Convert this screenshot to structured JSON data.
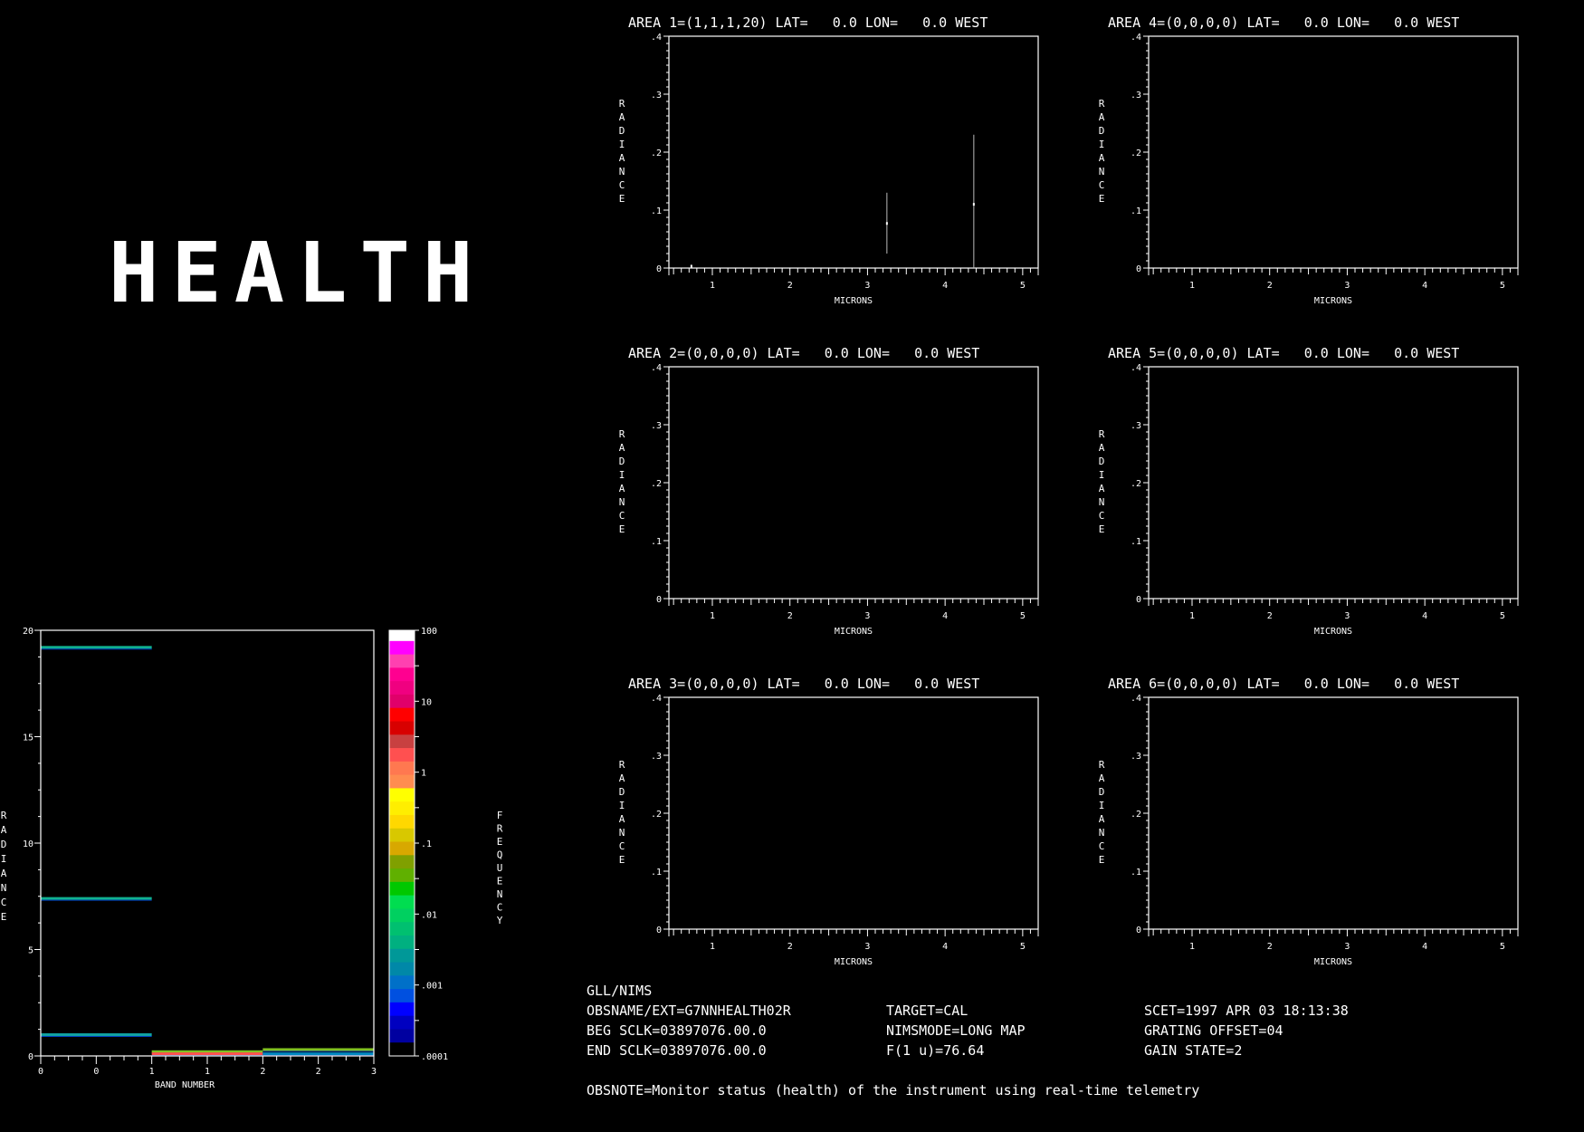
{
  "header": {
    "title": "HEALTH"
  },
  "info": {
    "instrument": "GLL/NIMS",
    "obsname": "OBSNAME/EXT=G7NNHEALTH02R",
    "target": "TARGET=CAL",
    "scet": "SCET=1997 APR 03 18:13:38",
    "beg_sclk": "BEG SCLK=03897076.00.0",
    "nimsmode": "NIMSMODE=LONG MAP",
    "grating": "GRATING OFFSET=04",
    "end_sclk": "END SCLK=03897076.00.0",
    "f1u": "F(1 u)=76.64",
    "gain": "GAIN STATE=2",
    "obsnote": "OBSNOTE=Monitor status (health) of the instrument using real-time telemetry"
  },
  "chart_data": [
    {
      "type": "heatmap",
      "xlabel": "BAND NUMBER",
      "ylabel": "RADIANCE",
      "ylim": [
        0,
        20
      ],
      "xlim": [
        0,
        3
      ],
      "x_tick_labels": [
        "0",
        "0",
        "1",
        "1",
        "2",
        "2",
        "3"
      ],
      "y_tick_labels": [
        "0",
        "5",
        "10",
        "15",
        "20"
      ],
      "colorbar": {
        "label": "FREQUENCY",
        "scale": "log",
        "range": [
          0.0001,
          100
        ],
        "tick_labels": [
          "100",
          "10",
          "1",
          ".1",
          ".01",
          ".001",
          ".0001"
        ],
        "colors": [
          "#ffffff",
          "#ff00ff",
          "#ff40b0",
          "#ff0090",
          "#f00080",
          "#e0006a",
          "#ff0000",
          "#d80000",
          "#c84040",
          "#ff5050",
          "#ff7850",
          "#ff8c50",
          "#ffff00",
          "#ffee00",
          "#ffd800",
          "#d8c800",
          "#d8a800",
          "#80a000",
          "#60b000",
          "#00c800",
          "#00dd50",
          "#00d060",
          "#00c070",
          "#00b080",
          "#009898",
          "#0088a8",
          "#0070c8",
          "#0050e0",
          "#0000ff",
          "#0000c0",
          "#0000a0",
          "#000000"
        ]
      },
      "segments": [
        {
          "band": [
            0,
            1
          ],
          "radiance": 19.2,
          "color": "#10b090"
        },
        {
          "band": [
            0,
            1
          ],
          "radiance": 7.4,
          "color": "#10b090"
        },
        {
          "band": [
            0,
            1
          ],
          "radiance": 1.0,
          "color": "#10a0a0"
        },
        {
          "band": [
            1,
            2
          ],
          "radiance": 0.2,
          "color": "#80c020"
        },
        {
          "band": [
            1,
            2
          ],
          "radiance": 0.1,
          "color": "#ff5050"
        },
        {
          "band": [
            2,
            3
          ],
          "radiance": 0.3,
          "color": "#80c020"
        },
        {
          "band": [
            2,
            3
          ],
          "radiance": 0.1,
          "color": "#0088c0"
        }
      ]
    },
    {
      "type": "line",
      "title": "AREA 1=(1,1,1,20) LAT=   0.0 LON=   0.0 WEST",
      "xlabel": "MICRONS",
      "ylabel": "RADIANCE",
      "xlim": [
        0.44,
        5.2
      ],
      "ylim": [
        0,
        0.4
      ],
      "x_tick_labels": [
        "1",
        "2",
        "3",
        "4",
        "5"
      ],
      "y_tick_labels": [
        "0",
        ".1",
        ".2",
        ".3",
        ".4"
      ],
      "points": [
        {
          "x": 0.73,
          "y": 0.003,
          "low": 0.0,
          "high": 0.006
        },
        {
          "x": 3.25,
          "y": 0.077,
          "low": 0.025,
          "high": 0.13
        },
        {
          "x": 4.37,
          "y": 0.11,
          "low": 0.0,
          "high": 0.23
        }
      ]
    },
    {
      "type": "line",
      "title": "AREA 2=(0,0,0,0) LAT=   0.0 LON=   0.0 WEST",
      "xlabel": "MICRONS",
      "ylabel": "RADIANCE",
      "xlim": [
        0.44,
        5.2
      ],
      "ylim": [
        0,
        0.4
      ],
      "x_tick_labels": [
        "1",
        "2",
        "3",
        "4",
        "5"
      ],
      "y_tick_labels": [
        "0",
        ".1",
        ".2",
        ".3",
        ".4"
      ],
      "points": []
    },
    {
      "type": "line",
      "title": "AREA 3=(0,0,0,0) LAT=   0.0 LON=   0.0 WEST",
      "xlabel": "MICRONS",
      "ylabel": "RADIANCE",
      "xlim": [
        0.44,
        5.2
      ],
      "ylim": [
        0,
        0.4
      ],
      "x_tick_labels": [
        "1",
        "2",
        "3",
        "4",
        "5"
      ],
      "y_tick_labels": [
        "0",
        ".1",
        ".2",
        ".3",
        ".4"
      ],
      "points": []
    },
    {
      "type": "line",
      "title": "AREA 4=(0,0,0,0) LAT=   0.0 LON=   0.0 WEST",
      "xlabel": "MICRONS",
      "ylabel": "RADIANCE",
      "xlim": [
        0.44,
        5.2
      ],
      "ylim": [
        0,
        0.4
      ],
      "x_tick_labels": [
        "1",
        "2",
        "3",
        "4",
        "5"
      ],
      "y_tick_labels": [
        "0",
        ".1",
        ".2",
        ".3",
        ".4"
      ],
      "points": []
    },
    {
      "type": "line",
      "title": "AREA 5=(0,0,0,0) LAT=   0.0 LON=   0.0 WEST",
      "xlabel": "MICRONS",
      "ylabel": "RADIANCE",
      "xlim": [
        0.44,
        5.2
      ],
      "ylim": [
        0,
        0.4
      ],
      "x_tick_labels": [
        "1",
        "2",
        "3",
        "4",
        "5"
      ],
      "y_tick_labels": [
        "0",
        ".1",
        ".2",
        ".3",
        ".4"
      ],
      "points": []
    },
    {
      "type": "line",
      "title": "AREA 6=(0,0,0,0) LAT=   0.0 LON=   0.0 WEST",
      "xlabel": "MICRONS",
      "ylabel": "RADIANCE",
      "xlim": [
        0.44,
        5.2
      ],
      "ylim": [
        0,
        0.4
      ],
      "x_tick_labels": [
        "1",
        "2",
        "3",
        "4",
        "5"
      ],
      "y_tick_labels": [
        "0",
        ".1",
        ".2",
        ".3",
        ".4"
      ],
      "points": []
    }
  ]
}
